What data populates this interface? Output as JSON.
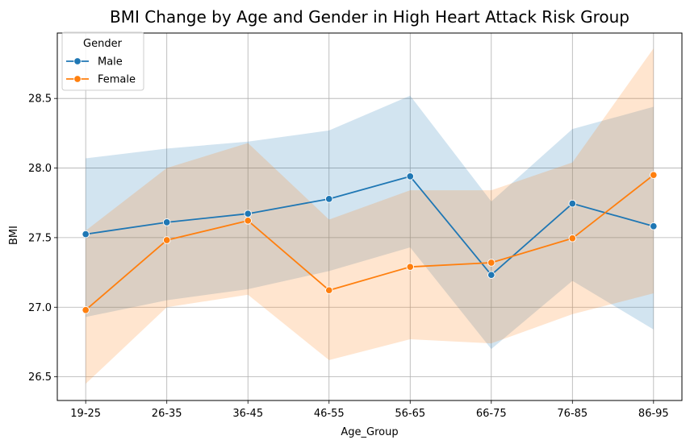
{
  "chart_data": {
    "type": "line",
    "title": "BMI Change by Age and Gender in High Heart Attack Risk Group",
    "xlabel": "Age_Group",
    "ylabel": "BMI",
    "categories": [
      "19-25",
      "26-35",
      "36-45",
      "46-55",
      "56-65",
      "66-75",
      "76-85",
      "86-95"
    ],
    "ylim": [
      26.33,
      28.97
    ],
    "yticks": [
      26.5,
      27.0,
      27.5,
      28.0,
      28.5
    ],
    "ytick_labels": [
      "26.5",
      "27.0",
      "27.5",
      "28.0",
      "28.5"
    ],
    "grid": true,
    "legend": {
      "title": "Gender",
      "placement": "top-left"
    },
    "series": [
      {
        "name": "Male",
        "color": "#1f77b4",
        "band_color": "#1f77b4",
        "values": [
          27.525,
          27.61,
          27.672,
          27.778,
          27.94,
          27.232,
          27.745,
          27.582
        ],
        "ci_lower": [
          26.93,
          27.05,
          27.13,
          27.26,
          27.43,
          26.7,
          27.19,
          26.84
        ],
        "ci_upper": [
          28.07,
          28.14,
          28.19,
          28.27,
          28.52,
          27.76,
          28.28,
          28.44
        ]
      },
      {
        "name": "Female",
        "color": "#ff7f0e",
        "band_color": "#ff7f0e",
        "values": [
          26.98,
          27.482,
          27.622,
          27.122,
          27.29,
          27.32,
          27.495,
          27.95
        ],
        "ci_lower": [
          26.45,
          27.0,
          27.09,
          26.62,
          26.77,
          26.74,
          26.95,
          27.1
        ],
        "ci_upper": [
          27.55,
          28.0,
          28.18,
          27.63,
          27.84,
          27.84,
          28.04,
          28.86
        ]
      }
    ]
  }
}
